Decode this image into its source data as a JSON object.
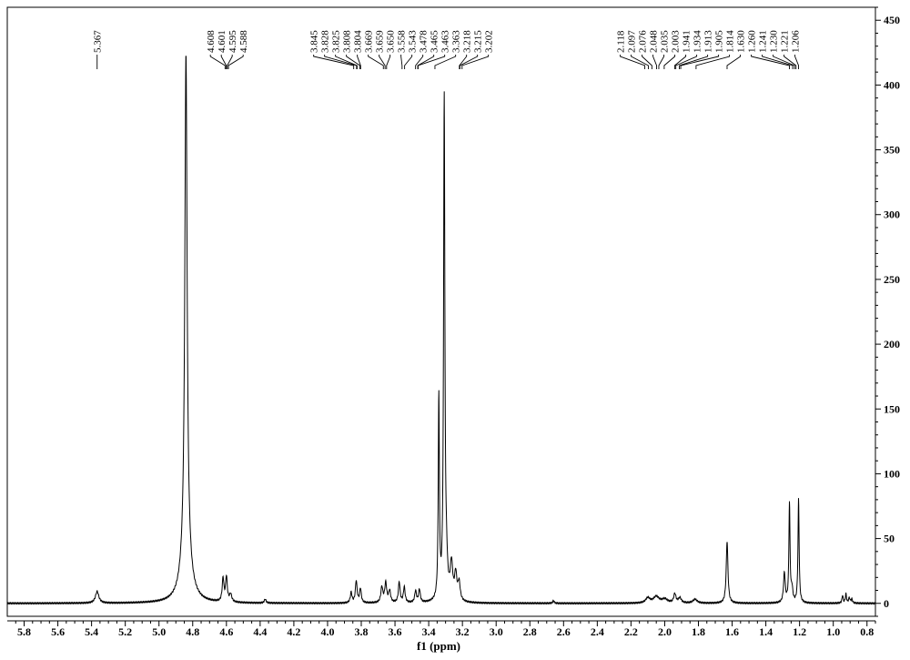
{
  "chart_data": {
    "type": "line",
    "title": "",
    "xlabel": "f1 (ppm)",
    "ylabel": "",
    "xlim": [
      5.9,
      0.75
    ],
    "ylim": [
      -10,
      460
    ],
    "x_ticks": [
      "5.8",
      "5.6",
      "5.4",
      "5.2",
      "5.0",
      "4.8",
      "4.6",
      "4.4",
      "4.2",
      "4.0",
      "3.8",
      "3.6",
      "3.4",
      "3.2",
      "3.0",
      "2.8",
      "2.6",
      "2.4",
      "2.2",
      "2.0",
      "1.8",
      "1.6",
      "1.4",
      "1.2",
      "1.0",
      "0.8"
    ],
    "y_ticks": [
      "0",
      "50",
      "100",
      "150",
      "200",
      "250",
      "300",
      "350",
      "400",
      "450"
    ],
    "grid": false,
    "peak_labels": [
      "5.367",
      "4.608",
      "4.601",
      "4.595",
      "4.588",
      "3.845",
      "3.828",
      "3.825",
      "3.808",
      "3.804",
      "3.669",
      "3.659",
      "3.650",
      "3.558",
      "3.543",
      "3.478",
      "3.465",
      "3.463",
      "3.363",
      "3.218",
      "3.215",
      "3.202",
      "2.118",
      "2.097",
      "2.076",
      "2.048",
      "2.035",
      "2.003",
      "1.941",
      "1.934",
      "1.913",
      "1.905",
      "1.814",
      "1.630",
      "1.260",
      "1.241",
      "1.230",
      "1.221",
      "1.206"
    ],
    "peaks": [
      {
        "x": 5.367,
        "y": 9,
        "w": 0.012
      },
      {
        "x": 4.84,
        "y": 385,
        "w": 0.008
      },
      {
        "x": 4.84,
        "y": 40,
        "w": 0.03
      },
      {
        "x": 4.62,
        "y": 18,
        "w": 0.006
      },
      {
        "x": 4.6,
        "y": 19,
        "w": 0.006
      },
      {
        "x": 4.575,
        "y": 6,
        "w": 0.008
      },
      {
        "x": 4.37,
        "y": 3,
        "w": 0.006
      },
      {
        "x": 3.86,
        "y": 8,
        "w": 0.006
      },
      {
        "x": 3.83,
        "y": 17,
        "w": 0.006
      },
      {
        "x": 3.805,
        "y": 11,
        "w": 0.006
      },
      {
        "x": 3.678,
        "y": 12,
        "w": 0.007
      },
      {
        "x": 3.655,
        "y": 15,
        "w": 0.007
      },
      {
        "x": 3.632,
        "y": 9,
        "w": 0.007
      },
      {
        "x": 3.575,
        "y": 16,
        "w": 0.006
      },
      {
        "x": 3.545,
        "y": 12,
        "w": 0.006
      },
      {
        "x": 3.478,
        "y": 9,
        "w": 0.006
      },
      {
        "x": 3.455,
        "y": 10,
        "w": 0.006
      },
      {
        "x": 3.34,
        "y": 156,
        "w": 0.004
      },
      {
        "x": 3.308,
        "y": 386,
        "w": 0.0045
      },
      {
        "x": 3.295,
        "y": 22,
        "w": 0.008
      },
      {
        "x": 3.265,
        "y": 28,
        "w": 0.009
      },
      {
        "x": 3.24,
        "y": 20,
        "w": 0.008
      },
      {
        "x": 3.22,
        "y": 14,
        "w": 0.008
      },
      {
        "x": 2.66,
        "y": 2,
        "w": 0.005
      },
      {
        "x": 2.1,
        "y": 4,
        "w": 0.015
      },
      {
        "x": 2.05,
        "y": 5,
        "w": 0.02
      },
      {
        "x": 2.0,
        "y": 3,
        "w": 0.02
      },
      {
        "x": 1.94,
        "y": 7,
        "w": 0.008
      },
      {
        "x": 1.91,
        "y": 4,
        "w": 0.01
      },
      {
        "x": 1.82,
        "y": 3,
        "w": 0.015
      },
      {
        "x": 1.63,
        "y": 48,
        "w": 0.006
      },
      {
        "x": 1.29,
        "y": 23,
        "w": 0.006
      },
      {
        "x": 1.26,
        "y": 76,
        "w": 0.004
      },
      {
        "x": 1.245,
        "y": 10,
        "w": 0.006
      },
      {
        "x": 1.206,
        "y": 80,
        "w": 0.004
      },
      {
        "x": 0.945,
        "y": 6,
        "w": 0.004
      },
      {
        "x": 0.925,
        "y": 7,
        "w": 0.004
      },
      {
        "x": 0.905,
        "y": 4,
        "w": 0.005
      },
      {
        "x": 0.89,
        "y": 3,
        "w": 0.005
      }
    ]
  }
}
